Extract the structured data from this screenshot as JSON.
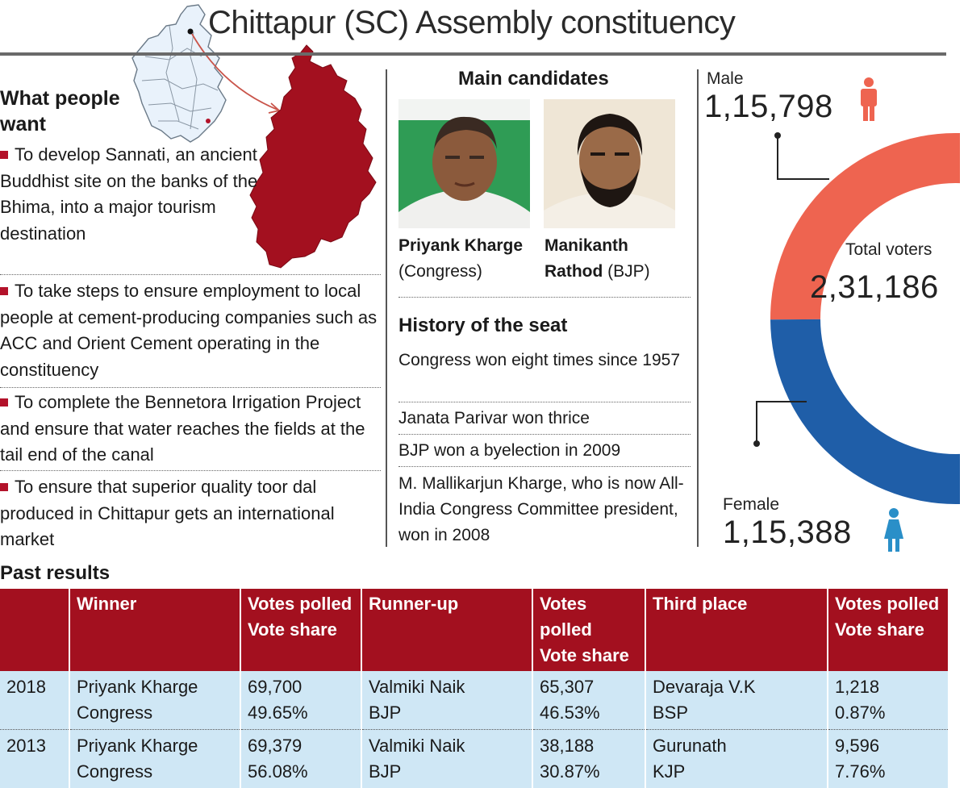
{
  "title": "Chittapur (SC) Assembly constituency",
  "what_people_want": {
    "heading": "What people want",
    "items": [
      "To develop Sannati, an ancient Buddhist site on the banks of the Bhima, into a major tourism destination",
      "To take steps to ensure employment to local people at cement-producing companies such as ACC and Orient Cement operating in the constituency",
      "To complete the Bennetora Irrigation Project and ensure that water reaches the fields at the tail end of the canal",
      "To ensure that superior quality toor dal produced in Chittapur gets an international market"
    ]
  },
  "main_candidates": {
    "heading": "Main candidates",
    "candidates": [
      {
        "name": "Priyank Kharge",
        "party": "(Congress)"
      },
      {
        "name": "Manikanth Rathod",
        "party": "(BJP)"
      }
    ]
  },
  "history": {
    "heading": "History of the seat",
    "items": [
      "Congress won eight times since 1957",
      "Janata Parivar won thrice",
      "BJP won a byelection in 2009",
      "M. Mallikarjun Kharge, who is now All-India Congress Committee president, won in 2008"
    ]
  },
  "voters": {
    "male_label": "Male",
    "male_count": "1,15,798",
    "total_label": "Total voters",
    "total_count": "2,31,186",
    "female_label": "Female",
    "female_count": "1,15,388",
    "male_value": 115798,
    "female_value": 115388,
    "male_color": "#ee6450",
    "female_color": "#1f5ea8"
  },
  "past_results": {
    "heading": "Past  results",
    "headers": [
      "",
      "Winner",
      "Votes polled Vote share",
      "Runner-up",
      "Votes polled Vote share",
      "Third place",
      "Votes polled Vote share"
    ],
    "header_lines": {
      "winner": "Winner",
      "runner_up": "Runner-up",
      "third_place": "Third place",
      "votes_polled": "Votes polled",
      "vote_share": "Vote share"
    },
    "rows": [
      {
        "year": "2018",
        "winner": "Priyank Kharge",
        "winner_party": "Congress",
        "winner_votes": "69,700",
        "winner_share": "49.65%",
        "runner_up": "Valmiki Naik",
        "runner_up_party": "BJP",
        "runner_up_votes": "65,307",
        "runner_up_share": "46.53%",
        "third": "Devaraja V.K",
        "third_party": "BSP",
        "third_votes": "1,218",
        "third_share": "0.87%"
      },
      {
        "year": "2013",
        "winner": "Priyank Kharge",
        "winner_party": "Congress",
        "winner_votes": "69,379",
        "winner_share": "56.08%",
        "runner_up": "Valmiki Naik",
        "runner_up_party": "BJP",
        "runner_up_votes": "38,188",
        "runner_up_share": "30.87%",
        "third": "Gurunath",
        "third_party": "KJP",
        "third_votes": "9,596",
        "third_share": "7.76%"
      }
    ]
  }
}
